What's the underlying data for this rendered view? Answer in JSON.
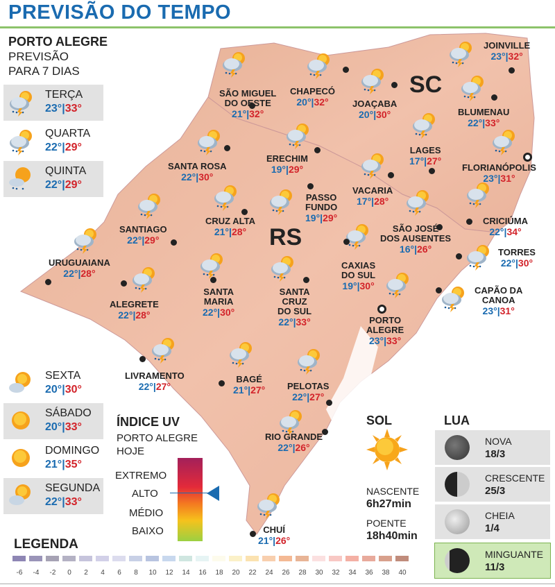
{
  "title": "PREVISÃO DO TEMPO",
  "header": {
    "city": "PORTO ALEGRE",
    "line1": "PREVISÃO",
    "line2": "PARA 7 DIAS"
  },
  "days": [
    {
      "name": "TERÇA",
      "min": "23°",
      "max": "33°",
      "icon": "storm-sun"
    },
    {
      "name": "QUARTA",
      "min": "22°",
      "max": "29°",
      "icon": "storm-sun"
    },
    {
      "name": "QUINTA",
      "min": "22°",
      "max": "29°",
      "icon": "sun-rain"
    },
    {
      "name": "SEXTA",
      "min": "20°",
      "max": "30°",
      "icon": "sun-cloud"
    },
    {
      "name": "SÁBADO",
      "min": "20°",
      "max": "33°",
      "icon": "sun"
    },
    {
      "name": "DOMINGO",
      "min": "21°",
      "max": "35°",
      "icon": "sun"
    },
    {
      "name": "SEGUNDA",
      "min": "22°",
      "max": "33°",
      "icon": "sun-cloud"
    }
  ],
  "states": {
    "rs": "RS",
    "sc": "SC"
  },
  "cities": [
    {
      "l1": "SÃO MIGUEL",
      "l2": "DO OESTE",
      "min": "21°",
      "max": "32°"
    },
    {
      "l1": "CHAPECÓ",
      "min": "20°",
      "max": "32°"
    },
    {
      "l1": "JOAÇABA",
      "min": "20°",
      "max": "30°"
    },
    {
      "l1": "JOINVILLE",
      "min": "23°",
      "max": "32°"
    },
    {
      "l1": "BLUMENAU",
      "min": "22°",
      "max": "33°"
    },
    {
      "l1": "LAGES",
      "min": "17°",
      "max": "27°"
    },
    {
      "l1": "FLORIANÓPOLIS",
      "min": "23°",
      "max": "31°"
    },
    {
      "l1": "SANTA ROSA",
      "min": "22°",
      "max": "30°"
    },
    {
      "l1": "ERECHIM",
      "min": "19°",
      "max": "29°"
    },
    {
      "l1": "VACARIA",
      "min": "17°",
      "max": "28°"
    },
    {
      "l1": "PASSO",
      "l2": "FUNDO",
      "min": "19°",
      "max": "29°"
    },
    {
      "l1": "CRUZ ALTA",
      "min": "21°",
      "max": "28°"
    },
    {
      "l1": "SANTIAGO",
      "min": "22°",
      "max": "29°"
    },
    {
      "l1": "CRICIÚMA",
      "min": "22°",
      "max": "34°"
    },
    {
      "l1": "SÃO JOSÉ",
      "l2": "DOS AUSENTES",
      "min": "16°",
      "max": "26°"
    },
    {
      "l1": "URUGUAIANA",
      "min": "22°",
      "max": "28°"
    },
    {
      "l1": "CAXIAS",
      "l2": "DO SUL",
      "min": "19°",
      "max": "30°"
    },
    {
      "l1": "TORRES",
      "min": "22°",
      "max": "30°"
    },
    {
      "l1": "SANTA",
      "l2": "MARIA",
      "min": "22°",
      "max": "30°"
    },
    {
      "l1": "SANTA",
      "l2": "CRUZ",
      "l3": "DO SUL",
      "min": "22°",
      "max": "33°"
    },
    {
      "l1": "ALEGRETE",
      "min": "22°",
      "max": "28°"
    },
    {
      "l1": "CAPÃO DA",
      "l2": "CANOA",
      "min": "23°",
      "max": "31°"
    },
    {
      "l1": "PORTO",
      "l2": "ALEGRE",
      "min": "23°",
      "max": "33°"
    },
    {
      "l1": "LIVRAMENTO",
      "min": "22°",
      "max": "27°"
    },
    {
      "l1": "BAGÉ",
      "min": "21°",
      "max": "27°"
    },
    {
      "l1": "PELOTAS",
      "min": "22°",
      "max": "27°"
    },
    {
      "l1": "RIO GRANDE",
      "min": "22°",
      "max": "26°"
    },
    {
      "l1": "CHUÍ",
      "min": "21°",
      "max": "26°"
    }
  ],
  "uv": {
    "title": "ÍNDICE UV",
    "sub1": "PORTO ALEGRE",
    "sub2": "HOJE",
    "levels": [
      "EXTREMO",
      "ALTO",
      "MÉDIO",
      "BAIXO"
    ],
    "current": "ALTO"
  },
  "sun": {
    "title": "SOL",
    "rise_label": "NASCENTE",
    "rise": "6h27min",
    "set_label": "POENTE",
    "set": "18h40min"
  },
  "moon": {
    "title": "LUA",
    "phases": [
      {
        "name": "NOVA",
        "date": "18/3"
      },
      {
        "name": "CRESCENTE",
        "date": "25/3"
      },
      {
        "name": "CHEIA",
        "date": "1/4"
      },
      {
        "name": "MINGUANTE",
        "date": "11/3"
      }
    ]
  },
  "legend": {
    "title": "LEGENDA",
    "ticks": [
      "-6",
      "-4",
      "-2",
      "0",
      "2",
      "4",
      "6",
      "8",
      "10",
      "12",
      "14",
      "16",
      "18",
      "20",
      "22",
      "24",
      "26",
      "28",
      "30",
      "32",
      "34",
      "36",
      "38",
      "40"
    ],
    "colors": [
      "#8e86b4",
      "#9a94b8",
      "#a6a2b4",
      "#b4b2c4",
      "#c6c4dc",
      "#d2d0e8",
      "#dcdcee",
      "#c8d0e6",
      "#b8c4e0",
      "#c8d8ee",
      "#cfe6e0",
      "#e6f4f4",
      "#fdfbec",
      "#fbf1c8",
      "#fbe2b0",
      "#f8cfae",
      "#f4b994",
      "#e8b496",
      "#fbe0e0",
      "#f8c8c4",
      "#f4b0a4",
      "#e8aa9c",
      "#d8a08c",
      "#c08c7c"
    ]
  }
}
